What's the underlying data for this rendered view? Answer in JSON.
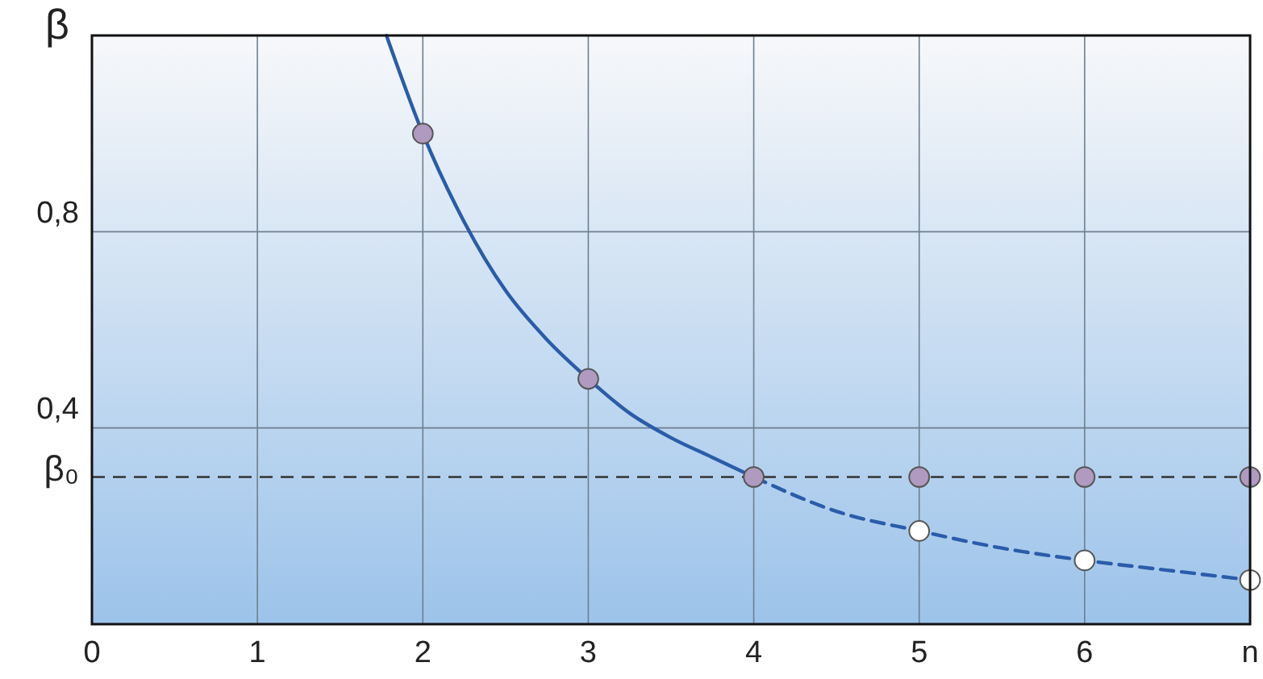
{
  "chart_data": {
    "type": "line",
    "ylabel": "β",
    "xlim": [
      0,
      7
    ],
    "ylim": [
      0,
      1.2
    ],
    "xticks": [
      0,
      1,
      2,
      3,
      4,
      5,
      6,
      {
        "value": 7,
        "label": "n"
      }
    ],
    "yticks": [
      {
        "value": 0.4,
        "label": "0,4"
      },
      {
        "value": 0.8,
        "label": "0,8"
      }
    ],
    "grid": true,
    "ref_lines": [
      {
        "axis": "y",
        "value": 0.3,
        "label": "β₀",
        "color": "#333333",
        "line_style": "dashed"
      }
    ],
    "series": [
      {
        "color": "#2a5caa",
        "line_style": "solid",
        "marker": "none",
        "x": [
          1.78,
          2,
          2.25,
          2.5,
          2.75,
          3,
          3.25,
          3.5,
          3.75,
          4
        ],
        "values": [
          1.2,
          1.0,
          0.82,
          0.68,
          0.58,
          0.5,
          0.43,
          0.38,
          0.34,
          0.3
        ]
      },
      {
        "color": "#2a5caa",
        "line_style": "dashed",
        "marker": "none",
        "x": [
          4,
          4.5,
          5,
          5.5,
          6,
          6.5,
          7
        ],
        "values": [
          0.3,
          0.23,
          0.19,
          0.155,
          0.13,
          0.11,
          0.09
        ]
      },
      {
        "type": "scatter",
        "color": "#b09ac0",
        "marker": "circle",
        "x": [
          2,
          3,
          4,
          5,
          6,
          7
        ],
        "values": [
          1.0,
          0.5,
          0.3,
          0.3,
          0.3,
          0.3
        ]
      },
      {
        "type": "scatter",
        "color": "#ffffff",
        "marker": "circle",
        "x": [
          5,
          6,
          7
        ],
        "values": [
          0.19,
          0.13,
          0.09
        ]
      }
    ]
  }
}
